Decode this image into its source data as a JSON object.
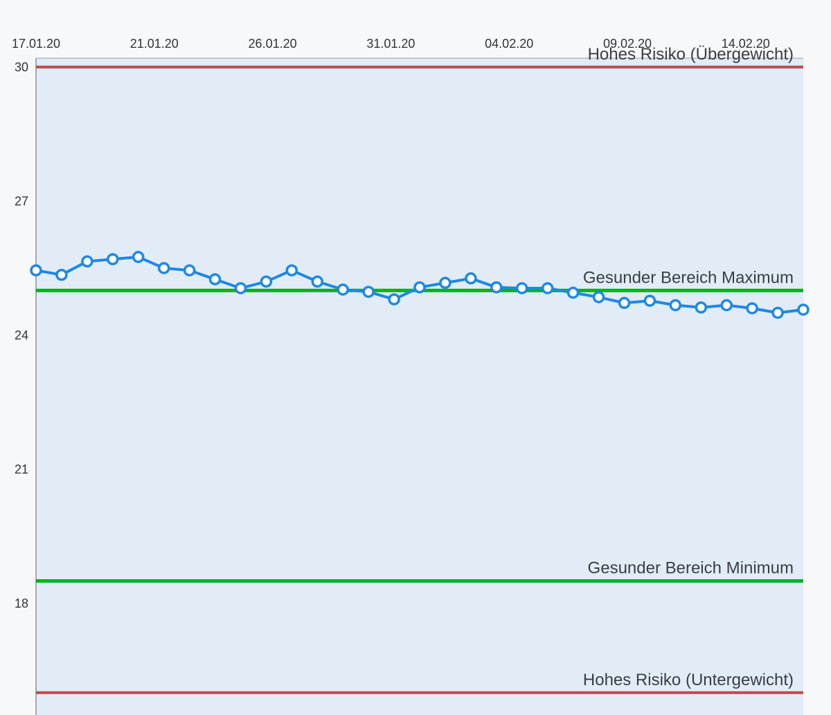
{
  "chart_data": {
    "type": "line",
    "x_tick_labels": [
      "17.01.20",
      "21.01.20",
      "26.01.20",
      "31.01.20",
      "04.02.20",
      "09.02.20",
      "14.02.20"
    ],
    "y_ticks": [
      18,
      21,
      24,
      27,
      30
    ],
    "ylim": [
      15.5,
      31.5
    ],
    "xlim": [
      "2020-01-17",
      "2020-02-16"
    ],
    "grid": false,
    "colors": {
      "plot_background": "#e1ecf7",
      "line": "#1e88e5",
      "marker_fill": "#ffffff",
      "risk": "#c0494b",
      "healthy": "#00b31b"
    },
    "reference_lines": [
      {
        "label": "Hohes Risiko (Übergewicht)",
        "value": 30.0,
        "color": "#c0494b"
      },
      {
        "label": "Gesunder Bereich Maximum",
        "value": 25.0,
        "color": "#00b31b"
      },
      {
        "label": "Gesunder Bereich Minimum",
        "value": 18.5,
        "color": "#00b31b"
      },
      {
        "label": "Hohes Risiko (Untergewicht)",
        "value": 16.0,
        "color": "#c0494b"
      }
    ],
    "series": [
      {
        "x": [
          "2020-01-17",
          "2020-01-18",
          "2020-01-19",
          "2020-01-20",
          "2020-01-21",
          "2020-01-22",
          "2020-01-23",
          "2020-01-24",
          "2020-01-25",
          "2020-01-26",
          "2020-01-27",
          "2020-01-28",
          "2020-01-29",
          "2020-01-30",
          "2020-01-31",
          "2020-02-01",
          "2020-02-02",
          "2020-02-03",
          "2020-02-04",
          "2020-02-05",
          "2020-02-06",
          "2020-02-07",
          "2020-02-08",
          "2020-02-09",
          "2020-02-10",
          "2020-02-11",
          "2020-02-12",
          "2020-02-13",
          "2020-02-14",
          "2020-02-15",
          "2020-02-16"
        ],
        "values": [
          25.45,
          25.35,
          25.65,
          25.7,
          25.75,
          25.5,
          25.45,
          25.25,
          25.05,
          25.2,
          25.45,
          25.2,
          25.02,
          24.97,
          24.8,
          25.07,
          25.17,
          25.27,
          25.07,
          25.05,
          25.05,
          24.95,
          24.85,
          24.72,
          24.77,
          24.67,
          24.62,
          24.67,
          24.6,
          24.5,
          24.57
        ]
      }
    ]
  }
}
